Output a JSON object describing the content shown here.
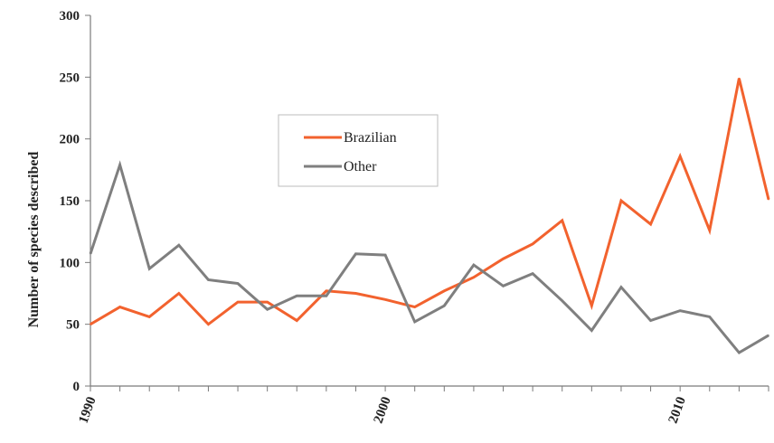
{
  "chart_data": {
    "type": "line",
    "title": "",
    "xlabel": "",
    "ylabel": "Number of species described",
    "x": [
      1990,
      1991,
      1992,
      1993,
      1994,
      1995,
      1996,
      1997,
      1998,
      1999,
      2000,
      2001,
      2002,
      2003,
      2004,
      2005,
      2006,
      2007,
      2008,
      2009,
      2010,
      2011,
      2012,
      2013
    ],
    "xticks": [
      "1990",
      "2000",
      "2010"
    ],
    "ylim": [
      0,
      300
    ],
    "yticks": [
      "0",
      "50",
      "100",
      "150",
      "200",
      "250",
      "300"
    ],
    "grid": false,
    "legend_position": "upper-center",
    "series": [
      {
        "name": "Brazilian",
        "color": "#f2622e",
        "values": [
          50,
          64,
          56,
          75,
          50,
          68,
          68,
          53,
          77,
          75,
          70,
          64,
          77,
          88,
          103,
          115,
          134,
          65,
          150,
          131,
          186,
          126,
          249,
          151
        ]
      },
      {
        "name": "Other",
        "color": "#7f7f7f",
        "values": [
          107,
          179,
          95,
          114,
          86,
          83,
          62,
          73,
          73,
          107,
          106,
          52,
          65,
          98,
          81,
          91,
          69,
          45,
          80,
          53,
          61,
          56,
          27,
          41
        ]
      }
    ]
  }
}
